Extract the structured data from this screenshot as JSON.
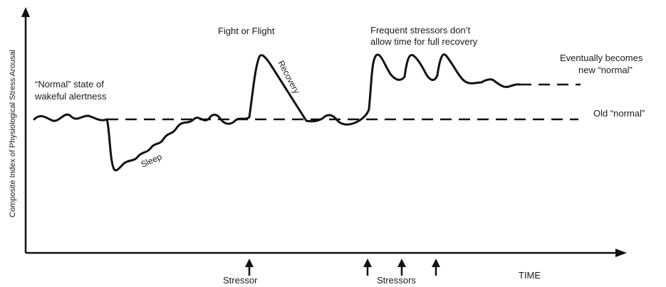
{
  "diagram": {
    "y_axis_label": "Composite Index of Physiological Stress Arousal",
    "x_axis_label": "TIME",
    "annotations": {
      "normal_state_line1": "“Normal” state of",
      "normal_state_line2": "wakeful alertness",
      "sleep": "Sleep",
      "fight_or_flight": "Fight or Flight",
      "recovery": "Recovery",
      "frequent_line1": "Frequent stressors don’t",
      "frequent_line2": "allow time for full recovery",
      "eventually_line1": "Eventually becomes",
      "eventually_line2": "new “normal”",
      "old_normal": "Old “normal”"
    },
    "markers": {
      "stressor": "Stressor",
      "stressors": "Stressors"
    },
    "colors": {
      "line": "#111111",
      "text": "#1a1a1a",
      "background": "#ffffff"
    }
  }
}
